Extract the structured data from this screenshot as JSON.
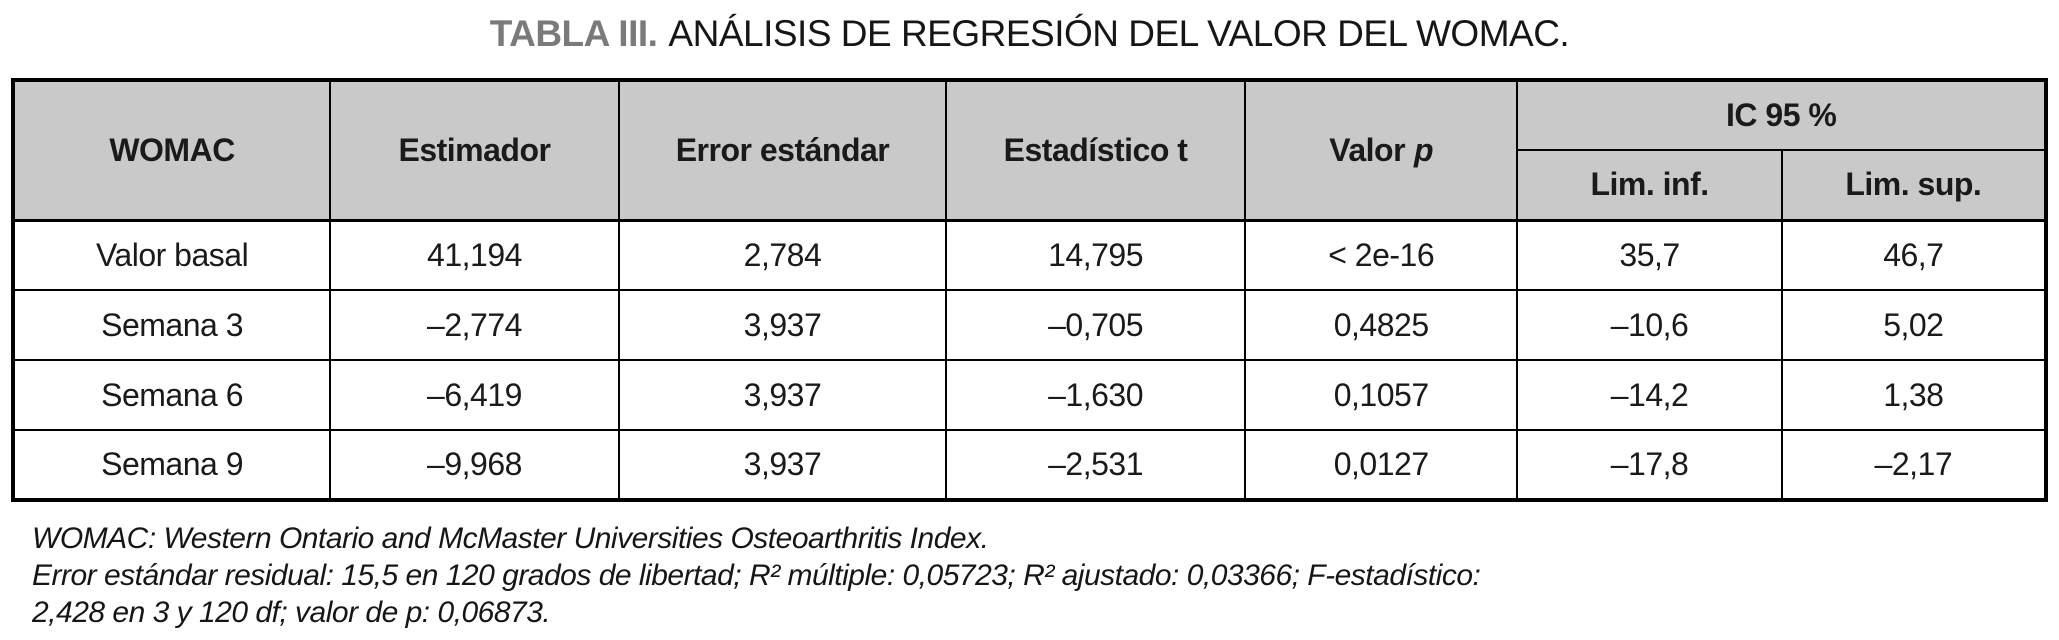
{
  "title": {
    "prefix": "TABLA III.",
    "rest": "ANÁLISIS DE REGRESIÓN DEL VALOR DEL WOMAC."
  },
  "table": {
    "headers": {
      "womac": "WOMAC",
      "estimador": "Estimador",
      "error_estandar": "Error estándar",
      "estadistico_t": "Estadístico t",
      "valor_text": "Valor",
      "valor_italic": "p",
      "ic_95": "IC 95 %",
      "lim_inf": "Lim. inf.",
      "lim_sup": "Lim. sup."
    },
    "rows": [
      [
        "Valor basal",
        "41,194",
        "2,784",
        "14,795",
        "< 2e-16",
        "35,7",
        "46,7"
      ],
      [
        "Semana 3",
        "–2,774",
        "3,937",
        "–0,705",
        "0,4825",
        "–10,6",
        "5,02"
      ],
      [
        "Semana 6",
        "–6,419",
        "3,937",
        "–1,630",
        "0,1057",
        "–14,2",
        "1,38"
      ],
      [
        "Semana 9",
        "–9,968",
        "3,937",
        "–2,531",
        "0,0127",
        "–17,8",
        "–2,17"
      ]
    ]
  },
  "footnotes": {
    "lines": [
      "WOMAC: Western Ontario and McMaster Universities Osteoarthritis Index.",
      "Error estándar residual: 15,5 en 120 grados de libertad; R² múltiple: 0,05723; R² ajustado: 0,03366; F-estadístico:",
      "2,428 en 3 y 120 df; valor de p: 0,06873."
    ]
  },
  "colors": {
    "header_bg": "#c9c9c9",
    "border": "#000000",
    "title_prefix": "#7a7a7a",
    "text": "#1a1a1a"
  }
}
